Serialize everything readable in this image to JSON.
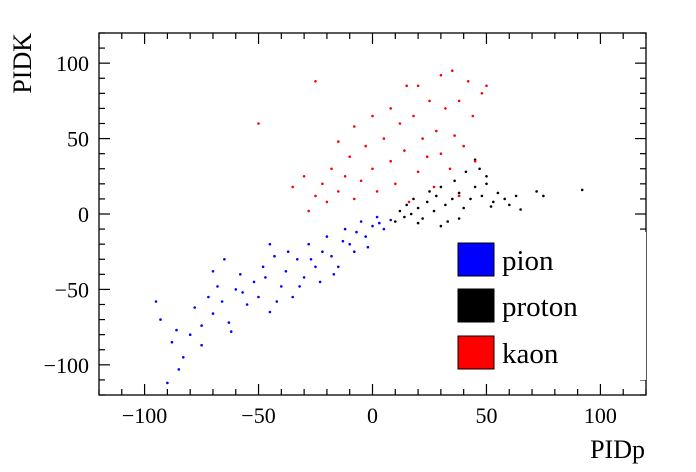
{
  "chart_data": {
    "type": "scatter",
    "title": "",
    "xlabel": "PIDp",
    "ylabel": "PIDK",
    "xlim": [
      -120,
      120
    ],
    "ylim": [
      -120,
      120
    ],
    "x_ticks": [
      -100,
      -50,
      0,
      50,
      100
    ],
    "x_tick_labels": [
      "−100",
      "−50",
      "0",
      "50",
      "100"
    ],
    "y_ticks": [
      -100,
      -50,
      0,
      50,
      100
    ],
    "y_tick_labels": [
      "−100",
      "−50",
      "0",
      "50",
      "100"
    ],
    "grid": false,
    "legend_position": "lower-right",
    "series": [
      {
        "name": "pion",
        "color": "#0000ff",
        "points": [
          [
            -95,
            -58
          ],
          [
            -93,
            -70
          ],
          [
            -90,
            -112
          ],
          [
            -88,
            -85
          ],
          [
            -86,
            -77
          ],
          [
            -83,
            -95
          ],
          [
            -80,
            -80
          ],
          [
            -78,
            -62
          ],
          [
            -75,
            -74
          ],
          [
            -72,
            -55
          ],
          [
            -70,
            -66
          ],
          [
            -68,
            -48
          ],
          [
            -66,
            -58
          ],
          [
            -63,
            -72
          ],
          [
            -60,
            -50
          ],
          [
            -58,
            -40
          ],
          [
            -55,
            -60
          ],
          [
            -52,
            -45
          ],
          [
            -50,
            -55
          ],
          [
            -48,
            -35
          ],
          [
            -45,
            -65
          ],
          [
            -43,
            -28
          ],
          [
            -40,
            -48
          ],
          [
            -38,
            -38
          ],
          [
            -35,
            -55
          ],
          [
            -33,
            -30
          ],
          [
            -30,
            -42
          ],
          [
            -28,
            -20
          ],
          [
            -25,
            -35
          ],
          [
            -23,
            -45
          ],
          [
            -20,
            -15
          ],
          [
            -18,
            -28
          ],
          [
            -15,
            -35
          ],
          [
            -12,
            -10
          ],
          [
            -10,
            -20
          ],
          [
            -8,
            -25
          ],
          [
            -5,
            -5
          ],
          [
            -3,
            -15
          ],
          [
            0,
            -8
          ],
          [
            2,
            -2
          ],
          [
            5,
            -10
          ],
          [
            8,
            -4
          ],
          [
            -62,
            -78
          ],
          [
            -57,
            -52
          ],
          [
            -47,
            -42
          ],
          [
            -42,
            -58
          ],
          [
            -37,
            -25
          ],
          [
            -32,
            -48
          ],
          [
            -27,
            -30
          ],
          [
            -22,
            -25
          ],
          [
            -17,
            -40
          ],
          [
            -13,
            -18
          ],
          [
            -7,
            -12
          ],
          [
            -2,
            -22
          ],
          [
            3,
            -6
          ],
          [
            -85,
            -103
          ],
          [
            -70,
            -38
          ],
          [
            -65,
            -30
          ],
          [
            -45,
            -20
          ],
          [
            -75,
            -87
          ]
        ]
      },
      {
        "name": "proton",
        "color": "#000000",
        "points": [
          [
            10,
            -5
          ],
          [
            12,
            2
          ],
          [
            14,
            -2
          ],
          [
            15,
            6
          ],
          [
            17,
            0
          ],
          [
            18,
            10
          ],
          [
            20,
            4
          ],
          [
            22,
            -3
          ],
          [
            24,
            8
          ],
          [
            25,
            15
          ],
          [
            27,
            2
          ],
          [
            28,
            12
          ],
          [
            30,
            18
          ],
          [
            32,
            6
          ],
          [
            33,
            -5
          ],
          [
            35,
            10
          ],
          [
            36,
            22
          ],
          [
            38,
            14
          ],
          [
            40,
            4
          ],
          [
            41,
            28
          ],
          [
            43,
            10
          ],
          [
            45,
            18
          ],
          [
            47,
            30
          ],
          [
            48,
            12
          ],
          [
            50,
            20
          ],
          [
            52,
            5
          ],
          [
            55,
            14
          ],
          [
            58,
            10
          ],
          [
            60,
            6
          ],
          [
            63,
            12
          ],
          [
            65,
            3
          ],
          [
            72,
            15
          ],
          [
            75,
            12
          ],
          [
            92,
            16
          ],
          [
            20,
            -6
          ],
          [
            30,
            -8
          ],
          [
            45,
            36
          ],
          [
            50,
            25
          ],
          [
            53,
            8
          ],
          [
            38,
            -3
          ]
        ]
      },
      {
        "name": "kaon",
        "color": "#ff0000",
        "points": [
          [
            -50,
            60
          ],
          [
            -25,
            88
          ],
          [
            -28,
            2
          ],
          [
            -25,
            12
          ],
          [
            -22,
            20
          ],
          [
            -20,
            8
          ],
          [
            -18,
            30
          ],
          [
            -15,
            15
          ],
          [
            -12,
            25
          ],
          [
            -10,
            38
          ],
          [
            -8,
            10
          ],
          [
            -5,
            22
          ],
          [
            -3,
            45
          ],
          [
            0,
            30
          ],
          [
            2,
            15
          ],
          [
            5,
            50
          ],
          [
            8,
            35
          ],
          [
            10,
            20
          ],
          [
            12,
            60
          ],
          [
            14,
            42
          ],
          [
            16,
            8
          ],
          [
            18,
            65
          ],
          [
            20,
            28
          ],
          [
            22,
            50
          ],
          [
            24,
            38
          ],
          [
            25,
            75
          ],
          [
            27,
            18
          ],
          [
            28,
            55
          ],
          [
            30,
            40
          ],
          [
            32,
            70
          ],
          [
            34,
            30
          ],
          [
            35,
            95
          ],
          [
            36,
            52
          ],
          [
            38,
            12
          ],
          [
            40,
            45
          ],
          [
            42,
            88
          ],
          [
            44,
            65
          ],
          [
            45,
            35
          ],
          [
            48,
            80
          ],
          [
            50,
            85
          ],
          [
            -15,
            48
          ],
          [
            -8,
            58
          ],
          [
            0,
            65
          ],
          [
            8,
            70
          ],
          [
            15,
            85
          ],
          [
            20,
            85
          ],
          [
            30,
            92
          ],
          [
            38,
            75
          ],
          [
            -30,
            25
          ],
          [
            -35,
            18
          ]
        ]
      }
    ]
  }
}
